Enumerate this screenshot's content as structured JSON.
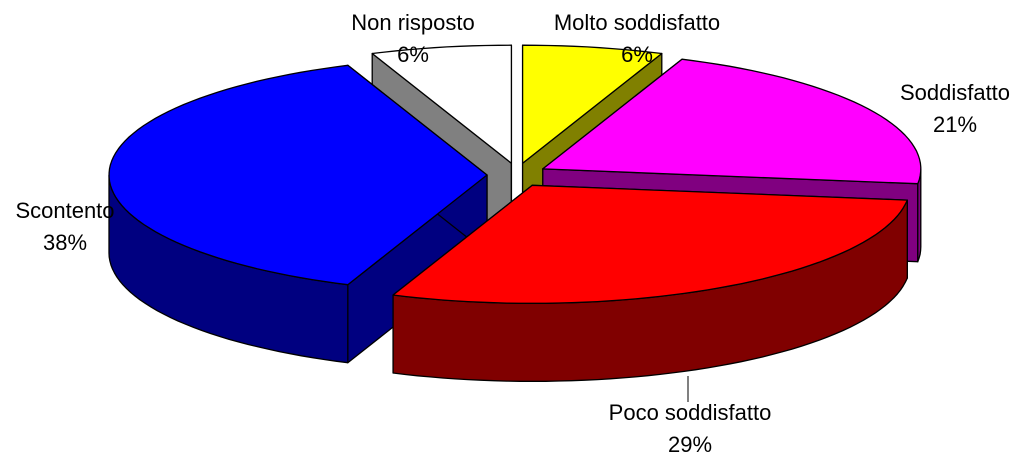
{
  "chart_data": {
    "type": "pie3d",
    "categories": [
      "Molto soddisfatto",
      "Soddisfatto",
      "Poco soddisfatto",
      "Scontento",
      "Non risposto"
    ],
    "values": [
      6,
      21,
      29,
      38,
      6
    ],
    "value_labels": [
      "6%",
      "21%",
      "29%",
      "38%",
      "6%"
    ],
    "colors": [
      "#ffff00",
      "#ff00ff",
      "#ff0000",
      "#0000ff",
      "#ffffff"
    ],
    "side_colors": [
      "#808000",
      "#800080",
      "#800000",
      "#000080",
      "#808080"
    ]
  }
}
